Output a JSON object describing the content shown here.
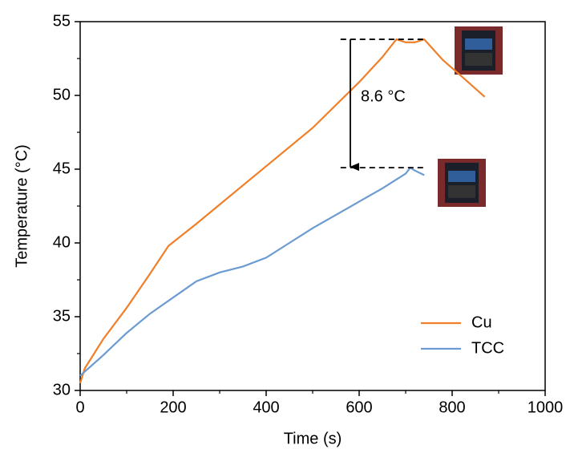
{
  "chart_data": {
    "type": "line",
    "x_label": "Time (s)",
    "y_label": "Temperature (°C)",
    "annotation": "8.6 °C",
    "xlim": [
      0,
      1000
    ],
    "xticks": [
      0,
      200,
      400,
      600,
      800,
      1000
    ],
    "ylim": [
      30,
      55
    ],
    "yticks": [
      30,
      35,
      40,
      45,
      50,
      55
    ],
    "legend": "lower right",
    "series": [
      {
        "name": "Cu",
        "color": "#f07f2a",
        "x": [
          0,
          10,
          50,
          100,
          150,
          190,
          250,
          300,
          400,
          500,
          600,
          650,
          680,
          700,
          720,
          740,
          780,
          820,
          870
        ],
        "values": [
          30.5,
          31.5,
          33.5,
          35.6,
          37.9,
          39.8,
          41.3,
          42.6,
          45.2,
          47.8,
          50.9,
          52.6,
          53.8,
          53.6,
          53.6,
          53.8,
          52.4,
          51.3,
          49.9
        ]
      },
      {
        "name": "TCC",
        "color": "#6b9bd1",
        "x": [
          0,
          50,
          100,
          150,
          200,
          250,
          300,
          350,
          400,
          450,
          500,
          550,
          600,
          650,
          700,
          710,
          720,
          740
        ],
        "values": [
          31.0,
          32.4,
          33.9,
          35.2,
          36.3,
          37.4,
          38.0,
          38.4,
          39.0,
          40.0,
          41.0,
          41.9,
          42.8,
          43.7,
          44.7,
          45.1,
          44.9,
          44.6
        ]
      }
    ]
  }
}
